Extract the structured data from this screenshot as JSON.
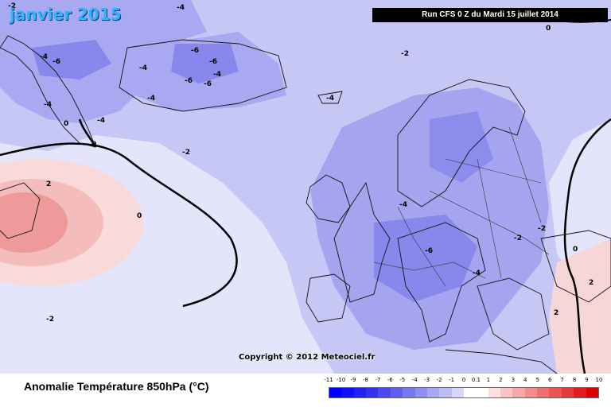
{
  "title": "janvier 2015",
  "run_info": "Run CFS 0 Z du Mardi 15 juillet 2014",
  "copyright": "Copyright © 2012 Meteociel.fr",
  "legend": {
    "title": "Anomalie Température 850hPa (°C)",
    "ticks": [
      "-11",
      "-10",
      "-9",
      "-8",
      "-7",
      "-6",
      "-5",
      "-4",
      "-3",
      "-2",
      "-1",
      "0",
      "0.1",
      "1",
      "2",
      "3",
      "4",
      "5",
      "6",
      "7",
      "8",
      "9",
      "10"
    ],
    "colors": [
      "#0000ff",
      "#1010f8",
      "#2020f0",
      "#3333ee",
      "#4a4aee",
      "#5f5fee",
      "#7777ee",
      "#8e8ef0",
      "#a6a6f3",
      "#bdbdf6",
      "#d6d6fa",
      "#ffffff",
      "#ffffff",
      "#fce0e0",
      "#f9c4c4",
      "#f6a8a8",
      "#f28c8c",
      "#ee7070",
      "#ea5454",
      "#e63838",
      "#e21c1c",
      "#de0000"
    ]
  },
  "contour_labels": [
    "-4",
    "-6",
    "-4",
    "-6",
    "-6",
    "-4",
    "-4",
    "-6",
    "-6",
    "-4",
    "-4",
    "-4",
    "-2",
    "-4",
    "0",
    "0",
    "-2",
    "2",
    "0",
    "-4",
    "-6",
    "-4",
    "-2",
    "-2",
    "0",
    "2",
    "2",
    "-2",
    "0",
    "-2"
  ]
}
